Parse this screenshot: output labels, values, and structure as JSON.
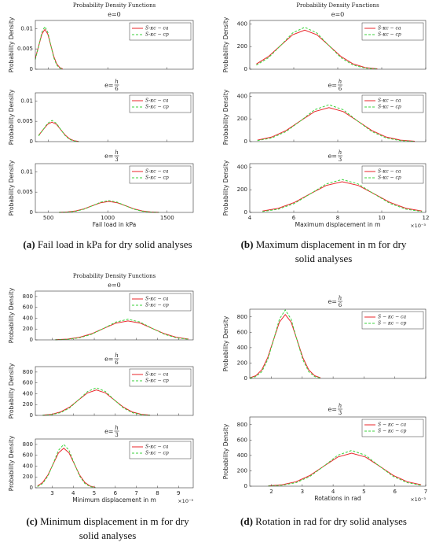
{
  "chart_data": [
    {
      "type": "line",
      "suptitle": "Probability Density Functions",
      "title": "e=0",
      "ylabel": "Probability Density",
      "legend": "upper right",
      "grid": false,
      "xlim": [
        390,
        1720
      ],
      "xticks": [
        500,
        1000,
        1500
      ],
      "ylim": [
        0,
        0.012
      ],
      "yticks": [
        0,
        0.005,
        0.01
      ],
      "x": [
        390,
        420,
        445,
        470,
        495,
        520,
        545,
        570,
        595,
        620
      ],
      "series": [
        {
          "name": "S-κc − ca",
          "color": "#e8262a",
          "dash": false,
          "values": [
            0.00272,
            0.00594,
            0.00865,
            0.0098,
            0.00865,
            0.00594,
            0.00318,
            0.00133,
            0.00043,
            0.00011
          ]
        },
        {
          "name": "S-κc − cp",
          "color": "#3bd23b",
          "dash": true,
          "values": [
            0.00239,
            0.00589,
            0.00909,
            0.0105,
            0.00909,
            0.00589,
            0.00286,
            0.00104,
            0.00028,
            6e-05
          ]
        }
      ]
    },
    {
      "type": "line",
      "title": "e=",
      "title_num": "h",
      "title_den": "6",
      "ylabel": "Probability Density",
      "legend": "upper right",
      "grid": false,
      "xlim": [
        390,
        1720
      ],
      "xticks": [
        500,
        1000,
        1500
      ],
      "ylim": [
        0,
        0.012
      ],
      "yticks": [
        0,
        0.005,
        0.01
      ],
      "x": [
        418,
        455,
        493,
        530,
        568,
        605,
        643,
        680,
        718,
        755
      ],
      "series": [
        {
          "name": "S-κc − ca",
          "color": "#e8262a",
          "dash": false,
          "values": [
            0.00156,
            0.00291,
            0.00424,
            0.0048,
            0.00424,
            0.00291,
            0.00156,
            0.00065,
            0.00021,
            5e-05
          ]
        },
        {
          "name": "S-κc − cp",
          "color": "#3bd23b",
          "dash": true,
          "values": [
            0.00142,
            0.00292,
            0.0045,
            0.0052,
            0.0045,
            0.00292,
            0.00142,
            0.00051,
            0.00014,
            3e-05
          ]
        }
      ]
    },
    {
      "type": "line",
      "title": "e=",
      "title_num": "h",
      "title_den": "3",
      "ylabel": "Probability Density",
      "xlabel": "Fail load in kPa",
      "legend": "upper right",
      "grid": false,
      "xlim": [
        390,
        1720
      ],
      "xticks": [
        500,
        1000,
        1500
      ],
      "ylim": [
        0,
        0.012
      ],
      "yticks": [
        0,
        0.005,
        0.01
      ],
      "x": [
        590,
        660,
        730,
        800,
        870,
        940,
        1010,
        1080,
        1150,
        1220,
        1290,
        1360,
        1430
      ],
      "series": [
        {
          "name": "S-κc − ca",
          "color": "#e8262a",
          "dash": false,
          "values": [
            3e-05,
            0.00012,
            0.00037,
            0.00088,
            0.00164,
            0.00238,
            0.0027,
            0.00238,
            0.00164,
            0.00088,
            0.00037,
            0.00012,
            3e-05
          ]
        },
        {
          "name": "S-κc − cp",
          "color": "#3bd23b",
          "dash": true,
          "values": [
            2e-05,
            8e-05,
            0.00029,
            0.00079,
            0.00163,
            0.00251,
            0.0029,
            0.00251,
            0.00163,
            0.00079,
            0.00029,
            8e-05,
            2e-05
          ]
        }
      ]
    },
    {
      "type": "line",
      "suptitle": "Probability Density Functions",
      "title": "e=0",
      "ylabel": "Probability Density",
      "legend": "upper right",
      "grid": false,
      "xlim": [
        4,
        12
      ],
      "xticks": [
        4,
        6,
        8,
        10,
        12
      ],
      "ylim": [
        0,
        430
      ],
      "yticks": [
        0,
        200,
        400
      ],
      "x": [
        4.3,
        4.85,
        5.4,
        5.95,
        6.5,
        7.05,
        7.6,
        8.15,
        8.7,
        9.25,
        9.8
      ],
      "series": [
        {
          "name": "S-κc − ca",
          "color": "#e8262a",
          "dash": false,
          "values": [
            46.7,
            112,
            209,
            304,
            345,
            304,
            209,
            112,
            46.7,
            15.1,
            3.8
          ]
        },
        {
          "name": "S-κc − cp",
          "color": "#3bd23b",
          "dash": true,
          "values": [
            36.6,
            101,
            208,
            320,
            370,
            320,
            208,
            101,
            36.6,
            10,
            2
          ]
        }
      ]
    },
    {
      "type": "line",
      "title": "e=",
      "title_num": "h",
      "title_den": "6",
      "ylabel": "Probability Density",
      "legend": "upper right",
      "grid": false,
      "xlim": [
        4,
        12
      ],
      "xticks": [
        4,
        6,
        8,
        10,
        12
      ],
      "ylim": [
        0,
        430
      ],
      "yticks": [
        0,
        200,
        400
      ],
      "x": [
        4.35,
        5.0,
        5.65,
        6.3,
        6.95,
        7.6,
        8.25,
        8.9,
        9.55,
        10.2,
        10.85,
        11.5
      ],
      "series": [
        {
          "name": "S-κc − ca",
          "color": "#e8262a",
          "dash": false,
          "values": [
            13.2,
            40.6,
            97.4,
            182,
            265,
            300,
            265,
            182,
            97.4,
            40.6,
            13.2,
            3.3
          ]
        },
        {
          "name": "S-κc − cp",
          "color": "#3bd23b",
          "dash": true,
          "values": [
            8.8,
            32.2,
            88.6,
            182,
            281,
            325,
            281,
            182,
            88.6,
            32.2,
            8.8,
            1.8
          ]
        }
      ]
    },
    {
      "type": "line",
      "title": "e=",
      "title_num": "h",
      "title_den": "3",
      "ylabel": "Probability Density",
      "xlabel": "Maximum displacement in m",
      "x_offset_label": "×10⁻³",
      "legend": "upper right",
      "grid": false,
      "xlim": [
        4,
        12
      ],
      "xticks": [
        4,
        6,
        8,
        10,
        12
      ],
      "ylim": [
        0,
        430
      ],
      "yticks": [
        0,
        200,
        400
      ],
      "x": [
        4.58,
        5.3,
        6.03,
        6.75,
        7.48,
        8.2,
        8.93,
        9.65,
        10.38,
        11.1,
        11.83
      ],
      "series": [
        {
          "name": "S-κc − ca",
          "color": "#e8262a",
          "dash": false,
          "values": [
            11.9,
            36.5,
            87.7,
            164,
            238,
            270,
            238,
            164,
            87.7,
            36.5,
            11.9
          ]
        },
        {
          "name": "S-κc − cp",
          "color": "#3bd23b",
          "dash": true,
          "values": [
            7.8,
            28.7,
            79,
            163,
            251,
            290,
            251,
            163,
            79,
            28.7,
            7.8
          ]
        }
      ]
    },
    {
      "type": "line",
      "suptitle": "Probability Density Functions",
      "title": "e=0",
      "ylabel": "Probability Density",
      "legend": "upper right",
      "grid": false,
      "xlim": [
        2.2,
        9.7
      ],
      "xticks": [
        3,
        4,
        5,
        6,
        7,
        8,
        9
      ],
      "ylim": [
        0,
        900
      ],
      "yticks": [
        0,
        200,
        400,
        600,
        800
      ],
      "x": [
        3.15,
        3.73,
        4.3,
        4.88,
        5.45,
        6.03,
        6.6,
        7.18,
        7.75,
        8.33,
        8.9,
        9.48
      ],
      "series": [
        {
          "name": "S-κc − ca",
          "color": "#e8262a",
          "dash": false,
          "values": [
            3.9,
            15.4,
            47.4,
            114,
            212,
            309,
            350,
            309,
            212,
            114,
            47.4,
            15.4
          ]
        },
        {
          "name": "S-κc − cp",
          "color": "#3bd23b",
          "dash": true,
          "values": [
            2.1,
            10.3,
            37.6,
            104,
            213,
            329,
            380,
            329,
            213,
            104,
            37.6,
            10.3
          ]
        }
      ]
    },
    {
      "type": "line",
      "title": "e=",
      "title_num": "h",
      "title_den": "6",
      "ylabel": "Probability Density",
      "legend": "upper right",
      "grid": false,
      "xlim": [
        2.2,
        9.7
      ],
      "xticks": [
        3,
        4,
        5,
        6,
        7,
        8,
        9
      ],
      "ylim": [
        0,
        900
      ],
      "yticks": [
        0,
        200,
        400,
        600,
        800
      ],
      "x": [
        2.55,
        2.98,
        3.4,
        3.83,
        4.25,
        4.68,
        5.1,
        5.53,
        5.95,
        6.38,
        6.8,
        7.23,
        7.65
      ],
      "series": [
        {
          "name": "S-κc − ca",
          "color": "#e8262a",
          "dash": false,
          "values": [
            5.2,
            20.6,
            63.6,
            153,
            285,
            415,
            470,
            415,
            285,
            153,
            63.6,
            20.6,
            5.2
          ]
        },
        {
          "name": "S-κc − cp",
          "color": "#3bd23b",
          "dash": true,
          "values": [
            2.8,
            13.8,
            50.5,
            139,
            286,
            441,
            510,
            441,
            286,
            139,
            50.5,
            13.8,
            2.8
          ]
        }
      ]
    },
    {
      "type": "line",
      "title": "e=",
      "title_num": "h",
      "title_den": "3",
      "ylabel": "Probability Density",
      "xlabel": "Minimum displacement in m",
      "x_offset_label": "×10⁻³",
      "legend": "upper right",
      "grid": false,
      "xlim": [
        2.2,
        9.7
      ],
      "xticks": [
        3,
        4,
        5,
        6,
        7,
        8,
        9
      ],
      "ylim": [
        0,
        900
      ],
      "yticks": [
        0,
        200,
        400,
        600,
        800
      ],
      "x": [
        2.3,
        2.55,
        2.8,
        3.05,
        3.3,
        3.55,
        3.8,
        4.05,
        4.3,
        4.55,
        4.8,
        5.05
      ],
      "series": [
        {
          "name": "S-κc − ca",
          "color": "#e8262a",
          "dash": false,
          "values": [
            32,
            98.8,
            237,
            442,
            644,
            730,
            644,
            442,
            237,
            98.8,
            32,
            8.1
          ]
        },
        {
          "name": "S-κc − cp",
          "color": "#3bd23b",
          "dash": true,
          "values": [
            21.6,
            79.2,
            218,
            448,
            692,
            800,
            692,
            448,
            218,
            79.2,
            21.6,
            4.4
          ]
        }
      ]
    },
    {
      "type": "line",
      "title": "e=",
      "title_num": "h",
      "title_den": "6",
      "ylabel": "Probability Density",
      "legend": "upper right",
      "grid": false,
      "xlim": [
        1.3,
        7
      ],
      "xticks": [
        2,
        3,
        4,
        5,
        6,
        7
      ],
      "ylim": [
        0,
        900
      ],
      "yticks": [
        0,
        200,
        400,
        600,
        800
      ],
      "x": [
        1.31,
        1.5,
        1.69,
        1.88,
        2.07,
        2.26,
        2.45,
        2.64,
        2.83,
        3.02,
        3.21,
        3.4,
        3.59
      ],
      "series": [
        {
          "name": "S − κc − ca",
          "color": "#e8262a",
          "dash": false,
          "values": [
            9.2,
            36.4,
            112,
            270,
            503,
            732,
            830,
            732,
            503,
            270,
            112,
            36.4,
            9.2
          ]
        },
        {
          "name": "S − κc − cp",
          "color": "#3bd23b",
          "dash": true,
          "values": [
            4.9,
            24,
            88.1,
            243,
            499,
            770,
            890,
            770,
            499,
            243,
            88.1,
            24,
            4.9
          ]
        }
      ]
    },
    {
      "type": "line",
      "title": "e=",
      "title_num": "h",
      "title_den": "3",
      "ylabel": "Probability Density",
      "xlabel": "Rotations in rad",
      "x_offset_label": "×10⁻³",
      "legend": "upper right",
      "grid": false,
      "xlim": [
        1.3,
        7
      ],
      "xticks": [
        2,
        3,
        4,
        5,
        6,
        7
      ],
      "ylim": [
        0,
        900
      ],
      "yticks": [
        0,
        200,
        400,
        600,
        800
      ],
      "x": [
        1.9,
        2.35,
        2.8,
        3.25,
        3.7,
        4.15,
        4.6,
        5.05,
        5.5,
        5.95,
        6.4,
        6.85
      ],
      "series": [
        {
          "name": "S − κc − ca",
          "color": "#e8262a",
          "dash": false,
          "values": [
            4.8,
            18.9,
            58.2,
            140,
            261,
            379,
            430,
            379,
            261,
            140,
            58.2,
            18.9
          ]
        },
        {
          "name": "S − κc − cp",
          "color": "#3bd23b",
          "dash": true,
          "values": [
            2.6,
            12.6,
            46,
            127,
            261,
            402,
            465,
            402,
            261,
            127,
            46,
            12.6
          ]
        }
      ]
    }
  ],
  "captions": [
    {
      "label": "(a)",
      "lines": [
        "Fail load in kPa for dry solid analyses"
      ]
    },
    {
      "label": "(b)",
      "lines": [
        "Maximum displacement in m for dry",
        "solid analyses"
      ]
    },
    {
      "label": "(c)",
      "lines": [
        "Minimum displacement in m for dry",
        "solid analyses"
      ]
    },
    {
      "label": "(d)",
      "lines": [
        "Rotation in rad for dry solid analyses"
      ]
    }
  ]
}
